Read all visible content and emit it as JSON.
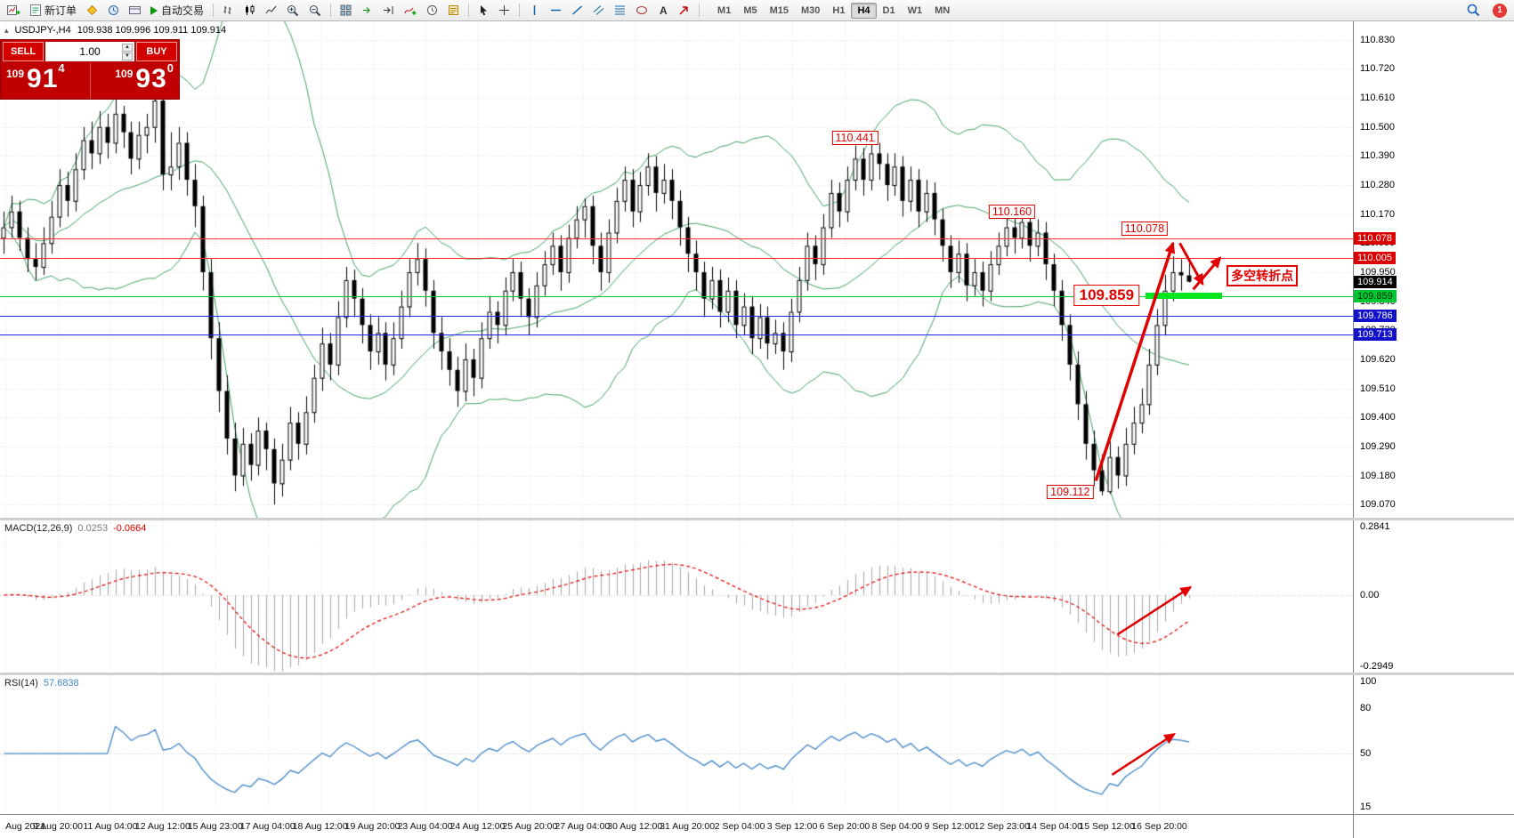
{
  "window": {
    "badge_count": "1"
  },
  "toolbar": {
    "new_order_label": "新订单",
    "autotrade_label": "自动交易",
    "timeframes": [
      "M1",
      "M5",
      "M15",
      "M30",
      "H1",
      "H4",
      "D1",
      "W1",
      "MN"
    ],
    "active_timeframe": "H4"
  },
  "trade_panel": {
    "sell_label": "SELL",
    "buy_label": "BUY",
    "volume": "1.00",
    "sell_price_small": "109",
    "sell_price_big": "91",
    "sell_price_sup": "4",
    "buy_price_small": "109",
    "buy_price_big": "93",
    "buy_price_sup": "0"
  },
  "symbol_header": {
    "collapse_icon": "▴",
    "symbol": "USDJPY-,H4",
    "ohlc": "109.938 109.996 109.911 109.914"
  },
  "style": {
    "grid": "#e2e2e2",
    "bull": "#ffffff",
    "bear": "#000000",
    "bollinger": "#3fa266",
    "macd_hist": "#a6a6a6",
    "macd_signal": "#e00000",
    "rsi_line": "#4286c8",
    "annotation": "#e00000"
  },
  "chart_data": [
    {
      "type": "candlestick",
      "symbol": "USDJPY-",
      "timeframe": "H4",
      "quote": {
        "open": "109.938",
        "high": "109.996",
        "low": "109.911",
        "close": "109.914"
      },
      "ylim": [
        109.02,
        110.9
      ],
      "y_ticks": [
        "110.830",
        "110.720",
        "110.610",
        "110.500",
        "110.390",
        "110.280",
        "110.170",
        "110.060",
        "109.950",
        "109.840",
        "109.730",
        "109.620",
        "109.510",
        "109.400",
        "109.290",
        "109.180",
        "109.070"
      ],
      "x_labels": [
        "Aug 2021",
        "9 Aug 20:00",
        "11 Aug 04:00",
        "12 Aug 12:00",
        "15 Aug 23:00",
        "17 Aug 04:00",
        "18 Aug 12:00",
        "19 Aug 20:00",
        "23 Aug 04:00",
        "24 Aug 12:00",
        "25 Aug 20:00",
        "27 Aug 04:00",
        "30 Aug 12:00",
        "31 Aug 20:00",
        "2 Sep 04:00",
        "3 Sep 12:00",
        "6 Sep 20:00",
        "8 Sep 04:00",
        "9 Sep 12:00",
        "12 Sep 23:00",
        "14 Sep 04:00",
        "15 Sep 12:00",
        "16 Sep 20:00"
      ],
      "indicators": {
        "bollinger": {
          "period": 20,
          "deviation": 2
        }
      },
      "hlines": [
        {
          "price": 110.078,
          "color": "#ff2a2a",
          "tag": "110.078",
          "tag_bg": "#dd0000",
          "tag_fg": "#ffffff"
        },
        {
          "price": 110.005,
          "color": "#ff2a2a",
          "tag": "110.005",
          "tag_bg": "#dd0000",
          "tag_fg": "#ffffff"
        },
        {
          "price": 109.859,
          "color": "#00c832",
          "tag": "109.859",
          "tag_bg": "#00c832",
          "tag_fg": "#002a00"
        },
        {
          "price": 109.786,
          "color": "#2222ee",
          "tag": "109.786",
          "tag_bg": "#1111cc",
          "tag_fg": "#ffffff"
        },
        {
          "price": 109.713,
          "color": "#2222ee",
          "tag": "109.713",
          "tag_bg": "#1111cc",
          "tag_fg": "#ffffff"
        }
      ],
      "current_price_tag": {
        "price": 109.914,
        "label": "109.914",
        "bg": "#000000",
        "fg": "#ffffff"
      },
      "zone": {
        "price": 109.859,
        "x1": 0.847,
        "x2": 0.903,
        "color": "#00e61e",
        "thickness": 7
      },
      "labels": [
        {
          "text": "110.441",
          "x": 0.632,
          "price": 110.46,
          "cls": ""
        },
        {
          "text": "110.160",
          "x": 0.748,
          "price": 110.18,
          "cls": ""
        },
        {
          "text": "110.078",
          "x": 0.846,
          "price": 110.115,
          "cls": ""
        },
        {
          "text": "109.859",
          "x": 0.818,
          "price": 109.862,
          "cls": "big"
        },
        {
          "text": "109.112",
          "x": 0.791,
          "price": 109.118,
          "cls": ""
        },
        {
          "text": "多空转折点",
          "x": 0.933,
          "price": 109.935,
          "cls": "cn"
        }
      ],
      "arrows": [
        {
          "x1": 0.81,
          "p1": 109.16,
          "x2": 0.867,
          "p2": 110.06,
          "w": 3.5
        },
        {
          "x1": 0.872,
          "p1": 110.06,
          "x2": 0.889,
          "p2": 109.905,
          "w": 3
        },
        {
          "x1": 0.882,
          "p1": 109.885,
          "x2": 0.902,
          "p2": 110.005,
          "w": 3
        }
      ],
      "candles": [
        [
          110.08,
          110.18,
          110.02,
          110.12
        ],
        [
          110.12,
          110.24,
          110.08,
          110.18
        ],
        [
          110.18,
          110.22,
          110.03,
          110.08
        ],
        [
          110.08,
          110.12,
          109.95,
          110.0
        ],
        [
          110.0,
          110.06,
          109.92,
          109.97
        ],
        [
          109.97,
          110.12,
          109.94,
          110.06
        ],
        [
          110.06,
          110.22,
          110.02,
          110.16
        ],
        [
          110.16,
          110.34,
          110.12,
          110.28
        ],
        [
          110.28,
          110.33,
          110.16,
          110.22
        ],
        [
          110.22,
          110.4,
          110.18,
          110.34
        ],
        [
          110.34,
          110.5,
          110.3,
          110.45
        ],
        [
          110.45,
          110.52,
          110.34,
          110.4
        ],
        [
          110.4,
          110.56,
          110.36,
          110.5
        ],
        [
          110.5,
          110.55,
          110.38,
          110.44
        ],
        [
          110.44,
          110.62,
          110.4,
          110.55
        ],
        [
          110.55,
          110.58,
          110.42,
          110.48
        ],
        [
          110.48,
          110.52,
          110.32,
          110.38
        ],
        [
          110.38,
          110.52,
          110.34,
          110.47
        ],
        [
          110.47,
          110.55,
          110.4,
          110.5
        ],
        [
          110.5,
          110.63,
          110.44,
          110.6
        ],
        [
          110.6,
          110.66,
          110.26,
          110.32
        ],
        [
          110.32,
          110.48,
          110.26,
          110.35
        ],
        [
          110.35,
          110.5,
          110.3,
          110.44
        ],
        [
          110.44,
          110.48,
          110.24,
          110.3
        ],
        [
          110.3,
          110.36,
          110.12,
          110.2
        ],
        [
          110.2,
          110.24,
          109.88,
          109.95
        ],
        [
          109.95,
          110.0,
          109.62,
          109.7
        ],
        [
          109.7,
          109.76,
          109.42,
          109.5
        ],
        [
          109.5,
          109.56,
          109.26,
          109.32
        ],
        [
          109.32,
          109.38,
          109.12,
          109.18
        ],
        [
          109.18,
          109.36,
          109.14,
          109.3
        ],
        [
          109.3,
          109.34,
          109.16,
          109.22
        ],
        [
          109.22,
          109.4,
          109.18,
          109.35
        ],
        [
          109.35,
          109.38,
          109.2,
          109.28
        ],
        [
          109.28,
          109.32,
          109.07,
          109.15
        ],
        [
          109.15,
          109.3,
          109.1,
          109.24
        ],
        [
          109.24,
          109.44,
          109.2,
          109.38
        ],
        [
          109.38,
          109.42,
          109.24,
          109.3
        ],
        [
          109.3,
          109.48,
          109.26,
          109.42
        ],
        [
          109.42,
          109.6,
          109.38,
          109.55
        ],
        [
          109.55,
          109.74,
          109.5,
          109.68
        ],
        [
          109.68,
          109.72,
          109.54,
          109.6
        ],
        [
          109.6,
          109.84,
          109.56,
          109.78
        ],
        [
          109.78,
          109.97,
          109.74,
          109.92
        ],
        [
          109.92,
          109.96,
          109.78,
          109.85
        ],
        [
          109.85,
          109.89,
          109.68,
          109.75
        ],
        [
          109.75,
          109.79,
          109.58,
          109.65
        ],
        [
          109.65,
          109.78,
          109.6,
          109.72
        ],
        [
          109.72,
          109.76,
          109.54,
          109.6
        ],
        [
          109.6,
          109.76,
          109.56,
          109.7
        ],
        [
          109.7,
          109.88,
          109.66,
          109.82
        ],
        [
          109.82,
          110.0,
          109.78,
          109.95
        ],
        [
          109.95,
          110.06,
          109.9,
          110.0
        ],
        [
          110.0,
          110.04,
          109.82,
          109.88
        ],
        [
          109.88,
          109.92,
          109.66,
          109.72
        ],
        [
          109.72,
          109.78,
          109.58,
          109.65
        ],
        [
          109.65,
          109.7,
          109.52,
          109.58
        ],
        [
          109.58,
          109.63,
          109.44,
          109.5
        ],
        [
          109.5,
          109.68,
          109.46,
          109.62
        ],
        [
          109.62,
          109.66,
          109.48,
          109.55
        ],
        [
          109.55,
          109.76,
          109.51,
          109.7
        ],
        [
          109.7,
          109.86,
          109.66,
          109.8
        ],
        [
          109.8,
          109.84,
          109.68,
          109.75
        ],
        [
          109.75,
          109.93,
          109.71,
          109.88
        ],
        [
          109.88,
          110.0,
          109.84,
          109.95
        ],
        [
          109.95,
          109.99,
          109.78,
          109.85
        ],
        [
          109.85,
          109.89,
          109.71,
          109.78
        ],
        [
          109.78,
          109.95,
          109.74,
          109.9
        ],
        [
          109.9,
          110.03,
          109.86,
          109.98
        ],
        [
          109.98,
          110.1,
          109.94,
          110.05
        ],
        [
          110.05,
          110.09,
          109.88,
          109.95
        ],
        [
          109.95,
          110.13,
          109.91,
          110.08
        ],
        [
          110.08,
          110.2,
          110.04,
          110.15
        ],
        [
          110.15,
          110.23,
          110.08,
          110.2
        ],
        [
          110.2,
          110.24,
          109.98,
          110.05
        ],
        [
          110.05,
          110.1,
          109.88,
          109.95
        ],
        [
          109.95,
          110.15,
          109.91,
          110.1
        ],
        [
          110.1,
          110.27,
          110.06,
          110.22
        ],
        [
          110.22,
          110.35,
          110.18,
          110.3
        ],
        [
          110.3,
          110.34,
          110.12,
          110.18
        ],
        [
          110.18,
          110.33,
          110.14,
          110.28
        ],
        [
          110.28,
          110.4,
          110.24,
          110.35
        ],
        [
          110.35,
          110.39,
          110.18,
          110.25
        ],
        [
          110.25,
          110.36,
          110.21,
          110.3
        ],
        [
          110.3,
          110.34,
          110.15,
          110.22
        ],
        [
          110.22,
          110.26,
          110.05,
          110.12
        ],
        [
          110.12,
          110.16,
          109.95,
          110.02
        ],
        [
          110.02,
          110.07,
          109.88,
          109.95
        ],
        [
          109.95,
          109.99,
          109.78,
          109.85
        ],
        [
          109.85,
          109.97,
          109.81,
          109.92
        ],
        [
          109.92,
          109.96,
          109.74,
          109.8
        ],
        [
          109.8,
          109.93,
          109.76,
          109.88
        ],
        [
          109.88,
          109.92,
          109.7,
          109.75
        ],
        [
          109.75,
          109.87,
          109.71,
          109.82
        ],
        [
          109.82,
          109.86,
          109.64,
          109.7
        ],
        [
          109.7,
          109.83,
          109.66,
          109.78
        ],
        [
          109.78,
          109.82,
          109.62,
          109.68
        ],
        [
          109.68,
          109.77,
          109.64,
          109.72
        ],
        [
          109.72,
          109.76,
          109.58,
          109.65
        ],
        [
          109.65,
          109.85,
          109.61,
          109.8
        ],
        [
          109.8,
          109.97,
          109.76,
          109.92
        ],
        [
          109.92,
          110.1,
          109.88,
          110.05
        ],
        [
          110.05,
          110.09,
          109.92,
          109.98
        ],
        [
          109.98,
          110.17,
          109.94,
          110.12
        ],
        [
          110.12,
          110.3,
          110.08,
          110.25
        ],
        [
          110.25,
          110.29,
          110.12,
          110.18
        ],
        [
          110.18,
          110.35,
          110.14,
          110.3
        ],
        [
          110.3,
          110.43,
          110.26,
          110.38
        ],
        [
          110.38,
          110.42,
          110.24,
          110.3
        ],
        [
          110.3,
          110.441,
          110.26,
          110.4
        ],
        [
          110.4,
          110.44,
          110.3,
          110.36
        ],
        [
          110.36,
          110.4,
          110.22,
          110.28
        ],
        [
          110.28,
          110.4,
          110.24,
          110.35
        ],
        [
          110.35,
          110.39,
          110.16,
          110.22
        ],
        [
          110.22,
          110.35,
          110.18,
          110.3
        ],
        [
          110.3,
          110.34,
          110.12,
          110.18
        ],
        [
          110.18,
          110.3,
          110.14,
          110.25
        ],
        [
          110.25,
          110.29,
          110.09,
          110.15
        ],
        [
          110.15,
          110.19,
          109.99,
          110.05
        ],
        [
          110.05,
          110.09,
          109.89,
          109.95
        ],
        [
          109.95,
          110.07,
          109.91,
          110.02
        ],
        [
          110.02,
          110.06,
          109.84,
          109.9
        ],
        [
          109.9,
          110.0,
          109.86,
          109.95
        ],
        [
          109.95,
          109.99,
          109.82,
          109.88
        ],
        [
          109.88,
          110.03,
          109.84,
          109.98
        ],
        [
          109.98,
          110.1,
          109.94,
          110.05
        ],
        [
          110.05,
          110.17,
          110.01,
          110.12
        ],
        [
          110.12,
          110.16,
          110.02,
          110.08
        ],
        [
          110.08,
          110.16,
          110.04,
          110.14
        ],
        [
          110.14,
          110.18,
          109.99,
          110.05
        ],
        [
          110.05,
          110.15,
          110.01,
          110.1
        ],
        [
          110.1,
          110.14,
          109.92,
          109.98
        ],
        [
          109.98,
          110.02,
          109.82,
          109.88
        ],
        [
          109.88,
          109.92,
          109.69,
          109.75
        ],
        [
          109.75,
          109.79,
          109.54,
          109.6
        ],
        [
          109.6,
          109.65,
          109.39,
          109.45
        ],
        [
          109.45,
          109.5,
          109.24,
          109.3
        ],
        [
          109.3,
          109.35,
          109.14,
          109.2
        ],
        [
          109.2,
          109.26,
          109.105,
          109.12
        ],
        [
          109.12,
          109.31,
          109.11,
          109.25
        ],
        [
          109.25,
          109.29,
          109.13,
          109.18
        ],
        [
          109.18,
          109.36,
          109.14,
          109.3
        ],
        [
          109.3,
          109.44,
          109.26,
          109.38
        ],
        [
          109.38,
          109.51,
          109.34,
          109.45
        ],
        [
          109.45,
          109.66,
          109.41,
          109.6
        ],
        [
          109.6,
          109.81,
          109.56,
          109.75
        ],
        [
          109.75,
          109.94,
          109.71,
          109.88
        ],
        [
          109.88,
          110.01,
          109.84,
          109.95
        ],
        [
          109.95,
          110.0,
          109.88,
          109.938
        ],
        [
          109.938,
          109.996,
          109.911,
          109.914
        ]
      ]
    },
    {
      "type": "macd",
      "name": "MACD(12,26,9)",
      "value1": "0.0253",
      "value2": "-0.0664",
      "params": {
        "fast": 12,
        "slow": 26,
        "signal": 9
      },
      "ylim": [
        -0.2949,
        0.2841
      ],
      "y_ticks": [
        "0.2841",
        "0.00",
        "-0.2949"
      ],
      "arrow": {
        "x1": 0.826,
        "v1": -0.15,
        "x2": 0.88,
        "v2": 0.03,
        "w": 2.5
      }
    },
    {
      "type": "rsi",
      "name": "RSI(14)",
      "value": "57.6838",
      "period": 14,
      "ylim": [
        10,
        102
      ],
      "y_ticks": [
        "100",
        "80",
        "50",
        "15"
      ],
      "levels": [
        50
      ],
      "arrow": {
        "x1": 0.822,
        "v1": 36,
        "x2": 0.868,
        "v2": 63,
        "w": 2.5
      }
    }
  ]
}
